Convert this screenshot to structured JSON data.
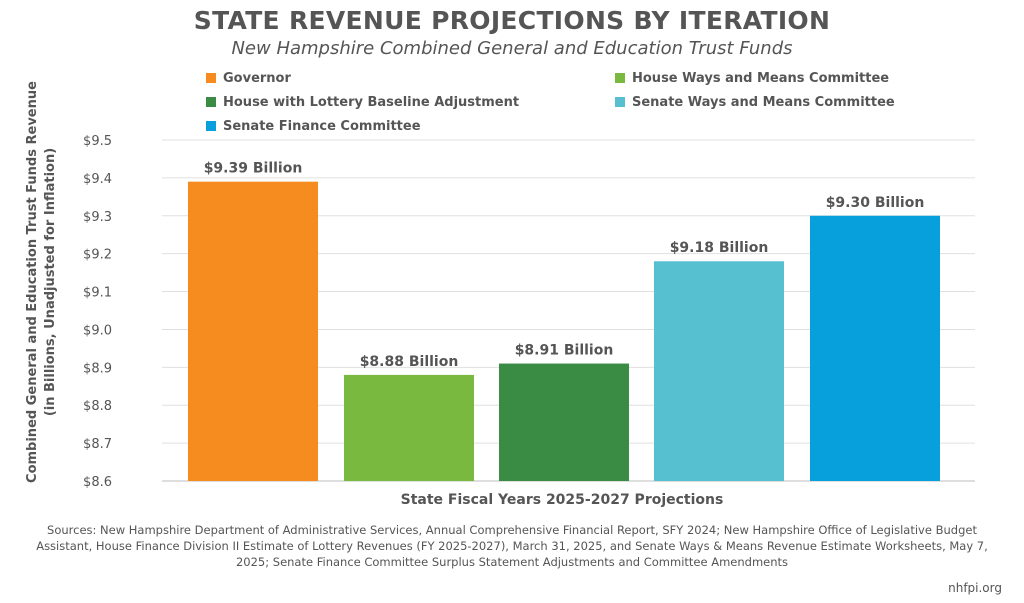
{
  "chart_data": {
    "type": "bar",
    "title": "STATE REVENUE PROJECTIONS BY ITERATION",
    "subtitle": "New Hampshire Combined General and Education Trust Funds",
    "xlabel": "State Fiscal Years 2025-2027 Projections",
    "ylabel_line1": "Combined General and Education Trust Funds Revenue",
    "ylabel_line2": "(in Billions, Unadjusted for Inflation)",
    "ylim": [
      8.6,
      9.5
    ],
    "yticks": [
      {
        "value": 8.6,
        "label": "$8.6"
      },
      {
        "value": 8.7,
        "label": "$8.7"
      },
      {
        "value": 8.8,
        "label": "$8.8"
      },
      {
        "value": 8.9,
        "label": "$8.9"
      },
      {
        "value": 9.0,
        "label": "$9.0"
      },
      {
        "value": 9.1,
        "label": "$9.1"
      },
      {
        "value": 9.2,
        "label": "$9.2"
      },
      {
        "value": 9.3,
        "label": "$9.3"
      },
      {
        "value": 9.4,
        "label": "$9.4"
      },
      {
        "value": 9.5,
        "label": "$9.5"
      }
    ],
    "grid": true,
    "legend_position": "top",
    "series": [
      {
        "name": "Governor",
        "value": 9.39,
        "label": "$9.39 Billion",
        "color": "#F68B1F"
      },
      {
        "name": "House Ways and Means Committee",
        "value": 8.88,
        "label": "$8.88 Billion",
        "color": "#7AB93F"
      },
      {
        "name": "House with Lottery Baseline Adjustment",
        "value": 8.91,
        "label": "$8.91 Billion",
        "color": "#3A8B43"
      },
      {
        "name": "Senate Ways and Means Committee",
        "value": 9.18,
        "label": "$9.18 Billion",
        "color": "#56C0D1"
      },
      {
        "name": "Senate Finance Committee",
        "value": 9.3,
        "label": "$9.30 Billion",
        "color": "#07A0DD"
      }
    ]
  },
  "footer": {
    "sources": "Sources: New Hampshire Department of Administrative Services, Annual Comprehensive Financial Report, SFY 2024; New Hampshire Office of Legislative Budget Assistant, House Finance Division II Estimate of Lottery Revenues (FY 2025-2027), March 31, 2025, and Senate Ways & Means Revenue Estimate Worksheets, May 7, 2025; Senate Finance Committee Surplus Statement Adjustments and Committee Amendments",
    "credit": "nhfpi.org"
  },
  "colors": {
    "text": "#555555",
    "grid": "#E0E0E0"
  }
}
